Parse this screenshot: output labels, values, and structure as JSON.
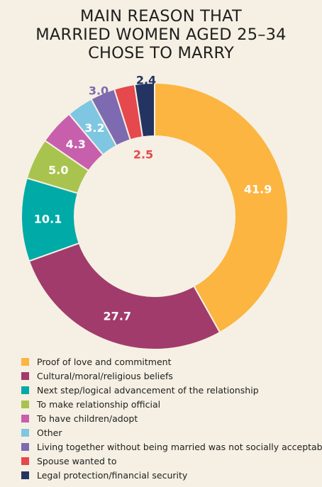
{
  "title_lines": [
    "MAIN REASON THAT",
    "MARRIED WOMEN AGED 25–34",
    "CHOSE TO MARRY"
  ],
  "chart_data": {
    "type": "pie",
    "title": "MAIN REASON THAT MARRIED WOMEN AGED 25–34 CHOSE TO MARRY",
    "donut": true,
    "legend_position": "bottom-left",
    "slices": [
      {
        "label": "Proof of love and commitment",
        "value": 41.9,
        "value_label": "41.9",
        "color": "#fbb540"
      },
      {
        "label": "Cultural/moral/religious beliefs",
        "value": 27.7,
        "value_label": "27.7",
        "color": "#a13b6c"
      },
      {
        "label": "Next step/logical advancement of the relationship",
        "value": 10.1,
        "value_label": "10.1",
        "color": "#00aaa7"
      },
      {
        "label": "To make relationship official",
        "value": 5.0,
        "value_label": "5.0",
        "color": "#a8c34e"
      },
      {
        "label": "To have children/adopt",
        "value": 4.3,
        "value_label": "4.3",
        "color": "#c75fac"
      },
      {
        "label": "Other",
        "value": 3.2,
        "value_label": "3.2",
        "color": "#7ec6e1"
      },
      {
        "label": "Living together without being married was not socially acceptable",
        "value": 3.0,
        "value_label": "3.0",
        "color": "#7e6ab0"
      },
      {
        "label": "Spouse wanted to",
        "value": 2.5,
        "value_label": "2.5",
        "color": "#e5484d"
      },
      {
        "label": "Legal protection/financial security",
        "value": 2.4,
        "value_label": "2.4",
        "color": "#233462"
      }
    ]
  }
}
